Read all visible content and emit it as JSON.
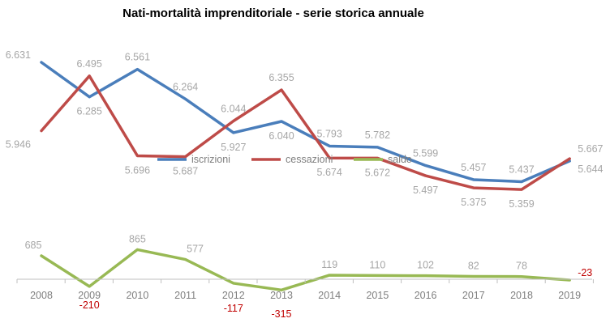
{
  "chart_data": [
    {
      "type": "line",
      "title": "Nati-mortalità imprenditoriale - serie storica annuale",
      "x": [
        "2008",
        "2009",
        "2010",
        "2011",
        "2012",
        "2013",
        "2014",
        "2015",
        "2016",
        "2017",
        "2018",
        "2019"
      ],
      "series": [
        {
          "name": "iscrizioni",
          "color": "#4a7ebb",
          "values": [
            6631,
            6285,
            6561,
            6264,
            5927,
            6040,
            5793,
            5782,
            5599,
            5457,
            5437,
            5644
          ],
          "labels": [
            "6.631",
            "6.285",
            "6.561",
            "6.264",
            "5.927",
            "6.040",
            "5.793",
            "5.782",
            "5.599",
            "5.457",
            "5.437",
            "5.644"
          ]
        },
        {
          "name": "cessazioni",
          "color": "#be4b48",
          "values": [
            5946,
            6495,
            5696,
            5687,
            6044,
            6355,
            5674,
            5672,
            5497,
            5375,
            5359,
            5667
          ],
          "labels": [
            "5.946",
            "6.495",
            "5.696",
            "5.687",
            "6.044",
            "6.355",
            "5.674",
            "5.672",
            "5.497",
            "5.375",
            "5.359",
            "5.667"
          ]
        }
      ],
      "legend_position": "bottom",
      "grid": false
    },
    {
      "type": "line",
      "x": [
        "2008",
        "2009",
        "2010",
        "2011",
        "2012",
        "2013",
        "2014",
        "2015",
        "2016",
        "2017",
        "2018",
        "2019"
      ],
      "series": [
        {
          "name": "saldo",
          "color": "#98b954",
          "values": [
            685,
            -210,
            865,
            577,
            -117,
            -315,
            119,
            110,
            102,
            82,
            78,
            -23
          ],
          "labels": [
            "685",
            "-210",
            "865",
            "577",
            "-117",
            "-315",
            "119",
            "110",
            "102",
            "82",
            "78",
            "-23"
          ]
        }
      ],
      "grid": false
    }
  ]
}
